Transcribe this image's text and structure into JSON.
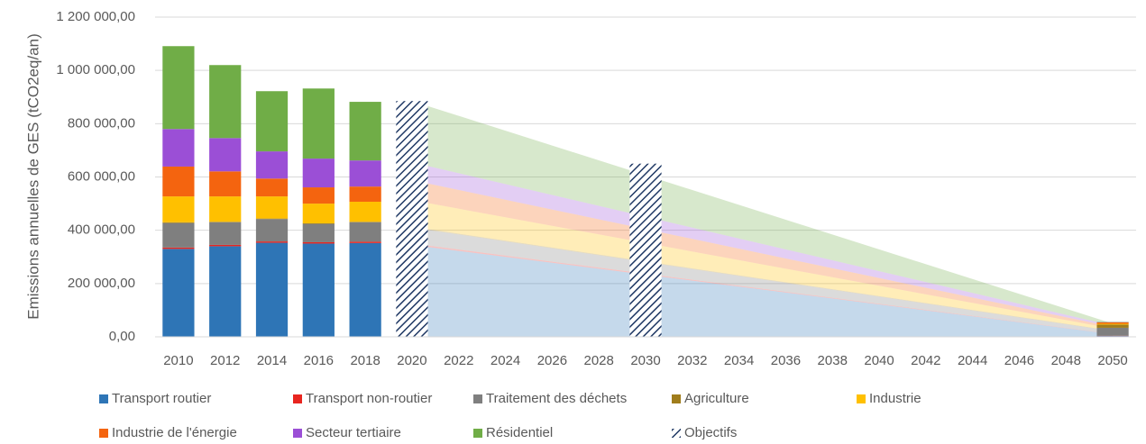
{
  "chart_data": {
    "type": "bar",
    "stacked": true,
    "y_label": "Emissions annuelles de GES (tCO2eq/an)",
    "categories": [
      "2010",
      "2012",
      "2014",
      "2016",
      "2018",
      "2020",
      "2022",
      "2024",
      "2026",
      "2028",
      "2030",
      "2032",
      "2034",
      "2036",
      "2038",
      "2040",
      "2042",
      "2044",
      "2046",
      "2048",
      "2050"
    ],
    "ylim": [
      0,
      1200000
    ],
    "yticks": [
      {
        "value": 0,
        "label": "0,00"
      },
      {
        "value": 200000,
        "label": "200 000,00"
      },
      {
        "value": 400000,
        "label": "400 000,00"
      },
      {
        "value": 600000,
        "label": "600 000,00"
      },
      {
        "value": 800000,
        "label": "800 000,00"
      },
      {
        "value": 1000000,
        "label": "1 000 000,00"
      },
      {
        "value": 1200000,
        "label": "1 200 000,00"
      }
    ],
    "grid": true,
    "series": [
      {
        "name": "Transport routier",
        "color": "#2e75b6",
        "values": [
          330000,
          340000,
          353000,
          350000,
          352000,
          null,
          null,
          null,
          null,
          null,
          null,
          null,
          null,
          null,
          null,
          null,
          null,
          null,
          null,
          null,
          3000
        ],
        "projection": {
          "x": [
            2020,
            2050
          ],
          "values": [
            345000,
            10000
          ]
        }
      },
      {
        "name": "Transport non-routier",
        "color": "#e8251f",
        "values": [
          5000,
          5000,
          5000,
          5000,
          5000,
          null,
          null,
          null,
          null,
          null,
          null,
          null,
          null,
          null,
          null,
          null,
          null,
          null,
          null,
          null,
          1000
        ],
        "projection": {
          "x": [
            2020,
            2050
          ],
          "values": [
            5000,
            1000
          ]
        }
      },
      {
        "name": "Traitement des déchets",
        "color": "#7f7f7f",
        "values": [
          92000,
          85000,
          84000,
          69000,
          73000,
          null,
          null,
          null,
          null,
          null,
          null,
          null,
          null,
          null,
          null,
          null,
          null,
          null,
          null,
          null,
          30000
        ],
        "projection": {
          "x": [
            2020,
            2050
          ],
          "values": [
            60000,
            10000
          ]
        }
      },
      {
        "name": "Agriculture",
        "color": "#a07d1c",
        "values": [
          3000,
          2000,
          2000,
          2000,
          2000,
          null,
          null,
          null,
          null,
          null,
          null,
          null,
          null,
          null,
          null,
          null,
          null,
          null,
          null,
          null,
          12000
        ],
        "projection": {
          "x": [
            2020,
            2050
          ],
          "values": [
            3000,
            2000
          ]
        }
      },
      {
        "name": "Industrie",
        "color": "#ffc000",
        "values": [
          97000,
          95000,
          83000,
          74000,
          75000,
          null,
          null,
          null,
          null,
          null,
          null,
          null,
          null,
          null,
          null,
          null,
          null,
          null,
          null,
          null,
          3000
        ],
        "projection": {
          "x": [
            2020,
            2050
          ],
          "values": [
            100000,
            8000
          ]
        }
      },
      {
        "name": "Industrie de l'énergie",
        "color": "#f4640f",
        "values": [
          112000,
          94000,
          67000,
          61000,
          57000,
          null,
          null,
          null,
          null,
          null,
          null,
          null,
          null,
          null,
          null,
          null,
          null,
          null,
          null,
          null,
          5000
        ],
        "projection": {
          "x": [
            2020,
            2050
          ],
          "values": [
            75000,
            6000
          ]
        }
      },
      {
        "name": "Secteur tertiaire",
        "color": "#9b4fd6",
        "values": [
          141000,
          125000,
          102000,
          108000,
          98000,
          null,
          null,
          null,
          null,
          null,
          null,
          null,
          null,
          null,
          null,
          null,
          null,
          null,
          null,
          null,
          1000
        ],
        "projection": {
          "x": [
            2020,
            2050
          ],
          "values": [
            67000,
            5000
          ]
        }
      },
      {
        "name": "Résidentiel",
        "color": "#70ad47",
        "values": [
          311000,
          274000,
          226000,
          263000,
          220000,
          null,
          null,
          null,
          null,
          null,
          null,
          null,
          null,
          null,
          null,
          null,
          null,
          null,
          null,
          null,
          1000
        ],
        "projection": {
          "x": [
            2020,
            2050
          ],
          "values": [
            230000,
            8000
          ]
        }
      },
      {
        "name": "Objectifs",
        "color": "#1f3864",
        "pattern": "hatch",
        "values": [
          null,
          null,
          null,
          null,
          null,
          885000,
          null,
          null,
          null,
          null,
          650000,
          null,
          null,
          null,
          null,
          null,
          null,
          null,
          null,
          null,
          null
        ]
      }
    ]
  }
}
